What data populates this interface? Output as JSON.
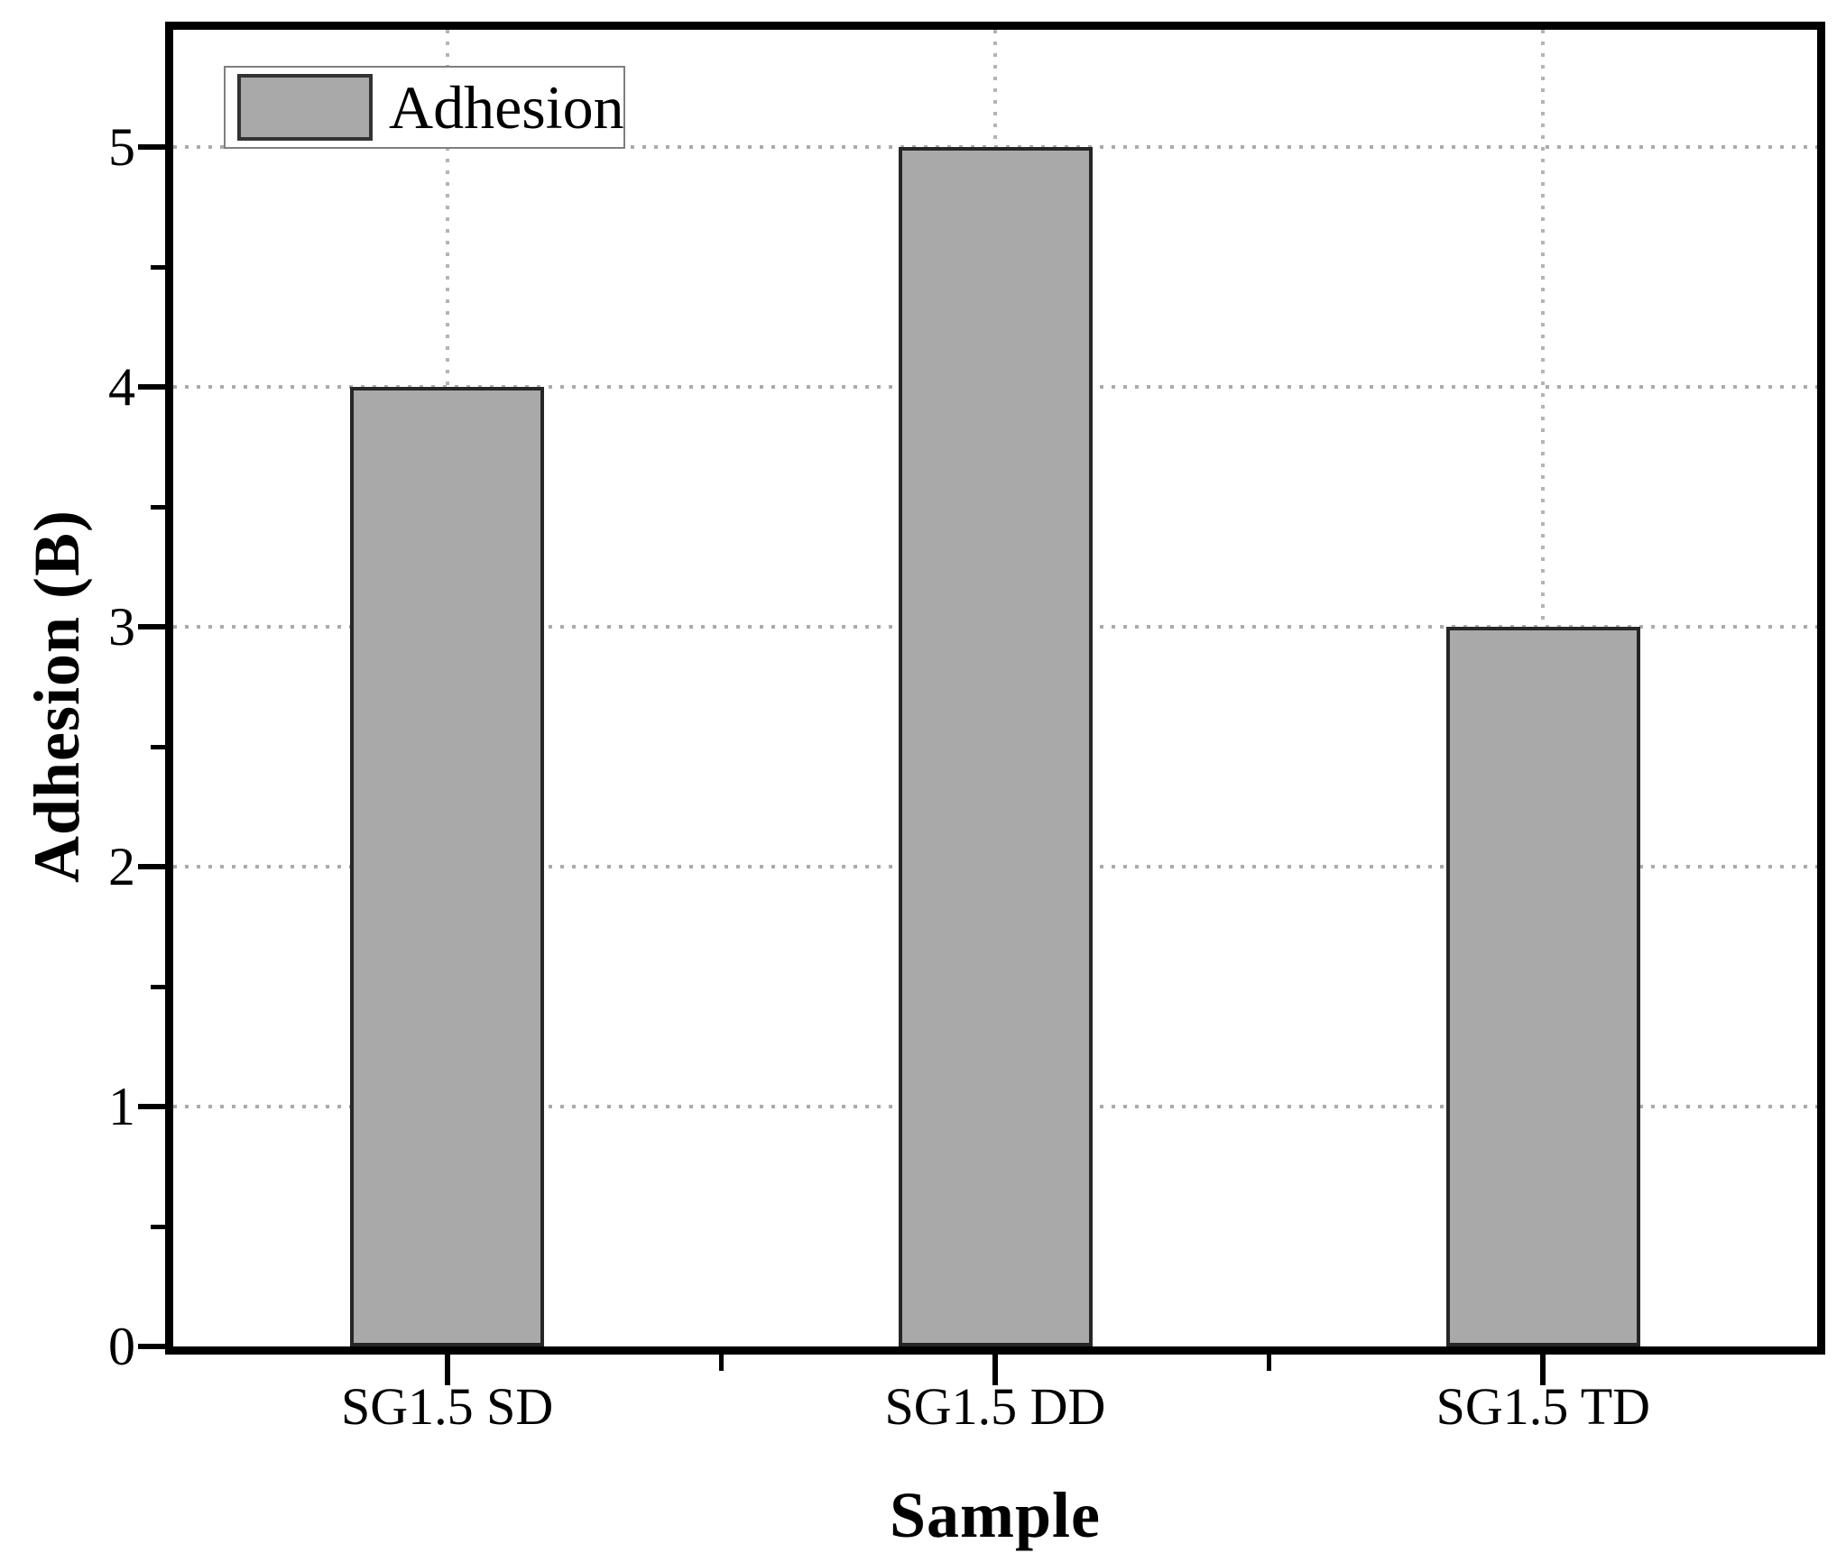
{
  "chart_data": {
    "type": "bar",
    "title": "",
    "categories": [
      "SG1.5 SD",
      "SG1.5 DD",
      "SG1.5 TD"
    ],
    "series": [
      {
        "name": "Adhesion",
        "values": [
          4,
          5,
          3
        ]
      }
    ],
    "xlabel": "Sample",
    "ylabel": "Adhesion (B)",
    "ylim": [
      0,
      5.5
    ],
    "ytick_values": [
      0,
      1,
      2,
      3,
      4,
      5
    ],
    "ytick_labels": [
      "0",
      "1",
      "2",
      "3",
      "4",
      "5"
    ],
    "yminor_tick_interval": 0.5,
    "grid": {
      "style": "dotted",
      "horizontal_at": [
        1,
        2,
        3,
        4,
        5
      ],
      "vertical_at_category_centers": true
    },
    "legend": {
      "position": "top-left",
      "label": "Adhesion"
    },
    "colors": {
      "bar_fill": "#a9a9a9",
      "bar_border": "#262626",
      "gridline": "#ababab",
      "axis": "#000000",
      "legend_border": "#7f7f7f",
      "text": "#000000"
    }
  }
}
